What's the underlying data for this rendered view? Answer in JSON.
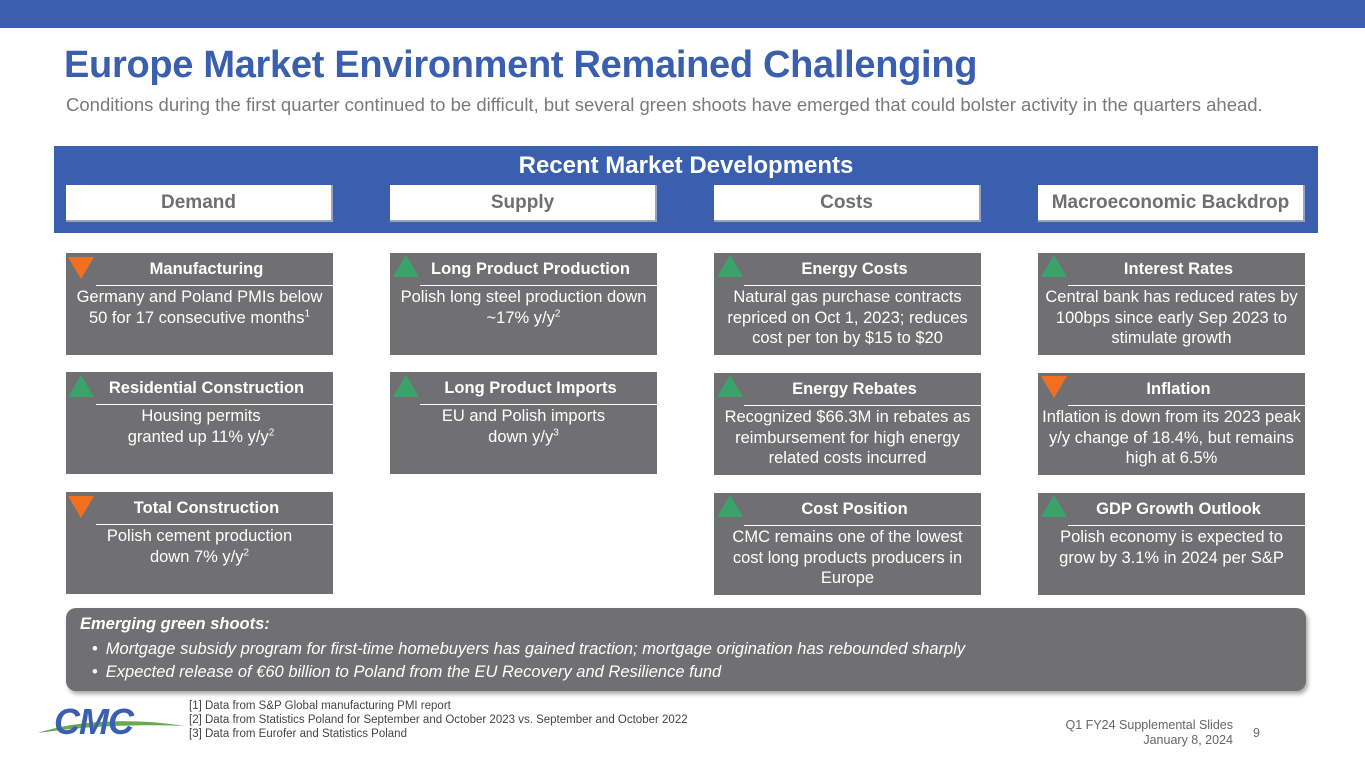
{
  "slide": {
    "title": "Europe Market Environment Remained Challenging",
    "subtitle": "Conditions during the first quarter continued to be difficult, but several green shoots have emerged that could bolster activity in the quarters ahead."
  },
  "band": {
    "title": "Recent Market Developments",
    "tabs": [
      "Demand",
      "Supply",
      "Costs",
      "Macroeconomic Backdrop"
    ]
  },
  "colors": {
    "accent": "#3a5faf",
    "card": "#707073",
    "up": "#3aa36a",
    "down": "#f07020"
  },
  "cards": [
    {
      "head": "Manufacturing",
      "body": "Germany and Poland PMIs below 50 for 17 consecutive months",
      "sup": "1",
      "direction": "down-icon"
    },
    {
      "head": "Residential Construction",
      "body": "Housing permits granted up 11% y/y",
      "sup": "2",
      "direction": "up-icon"
    },
    {
      "head": "Total Construction",
      "body": "Polish cement production down 7% y/y",
      "sup": "2",
      "direction": "down-icon"
    },
    {
      "head": "Long Product Production",
      "body": "Polish long steel production down ~17% y/y",
      "sup": "2",
      "direction": "up-icon"
    },
    {
      "head": "Long Product Imports",
      "body": "EU and Polish imports down y/y",
      "sup": "3",
      "direction": "up-icon"
    },
    {
      "head": "Energy Costs",
      "body": "Natural gas purchase contracts repriced on Oct 1, 2023; reduces cost per ton by $15 to $20",
      "sup": "",
      "direction": "up-icon"
    },
    {
      "head": "Energy Rebates",
      "body": "Recognized $66.3M in rebates as reimbursement for high energy related costs incurred",
      "sup": "",
      "direction": "up-icon"
    },
    {
      "head": "Cost Position",
      "body": "CMC remains one of the lowest cost long products producers in Europe",
      "sup": "",
      "direction": "up-icon"
    },
    {
      "head": "Interest Rates",
      "body": "Central bank has reduced rates by 100bps since early Sep 2023 to stimulate growth",
      "sup": "",
      "direction": "up-icon"
    },
    {
      "head": "Inflation",
      "body": "Inflation is down from its 2023 peak y/y change of 18.4%, but remains high at 6.5%",
      "sup": "",
      "direction": "down-icon"
    },
    {
      "head": "GDP Growth Outlook",
      "body": "Polish economy is expected to grow by 3.1% in 2024 per S&P",
      "sup": "",
      "direction": "up-icon"
    }
  ],
  "green_shoots": {
    "heading": "Emerging green shoots:",
    "items": [
      "Mortgage subsidy program for first-time homebuyers has gained traction; mortgage origination has rebounded sharply",
      "Expected release of €60 billion to Poland from the EU Recovery and Resilience fund"
    ]
  },
  "footnotes": [
    "[1] Data from S&P Global manufacturing PMI report",
    "[2] Data from Statistics Poland for September and October 2023 vs. September and October 2022",
    "[3] Data from Eurofer and Statistics Poland"
  ],
  "footer": {
    "deck": "Q1 FY24 Supplemental Slides",
    "date": "January 8, 2024",
    "page": "9",
    "logo_text": "CMC"
  }
}
